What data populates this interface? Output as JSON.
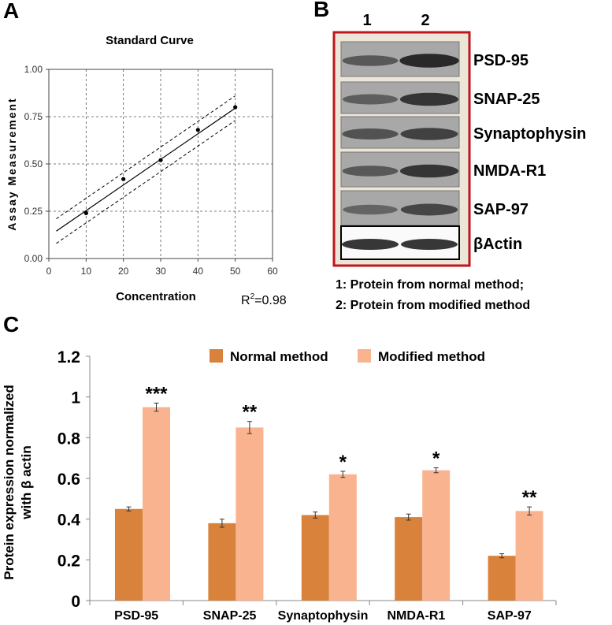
{
  "panels": {
    "a": "A",
    "b": "B",
    "c": "C"
  },
  "chart_data": [
    {
      "panel": "A",
      "type": "scatter",
      "title": "Standard Curve",
      "xlabel": "Concentration",
      "ylabel": "Assay Measurement",
      "xlim": [
        0,
        60
      ],
      "ylim": [
        0,
        1.0
      ],
      "x_ticks": [
        "0",
        "10",
        "20",
        "30",
        "40",
        "50",
        "60"
      ],
      "y_ticks": [
        "0.00",
        "0.25",
        "0.50",
        "0.75",
        "1.00"
      ],
      "grid": true,
      "points": [
        {
          "x": 10,
          "y": 0.24
        },
        {
          "x": 20,
          "y": 0.42
        },
        {
          "x": 30,
          "y": 0.52
        },
        {
          "x": 40,
          "y": 0.68
        },
        {
          "x": 50,
          "y": 0.8
        }
      ],
      "fit_line": {
        "x": [
          2,
          50
        ],
        "y": [
          0.145,
          0.795
        ]
      },
      "confidence_band": {
        "upper": {
          "x": [
            2,
            50
          ],
          "y": [
            0.21,
            0.86
          ]
        },
        "lower": {
          "x": [
            2,
            50
          ],
          "y": [
            0.08,
            0.73
          ]
        }
      },
      "r2_label": "R",
      "r2_sup": "2",
      "r2_value": "=0.98"
    },
    {
      "panel": "B",
      "type": "blot",
      "lanes": [
        "1",
        "2"
      ],
      "rows": [
        {
          "label": "PSD-95",
          "lane_intensity": [
            0.55,
            0.95
          ]
        },
        {
          "label": "SNAP-25",
          "lane_intensity": [
            0.5,
            0.85
          ]
        },
        {
          "label": "Synaptophysin",
          "lane_intensity": [
            0.6,
            0.75
          ]
        },
        {
          "label": "NMDA-R1",
          "lane_intensity": [
            0.55,
            0.85
          ]
        },
        {
          "label": "SAP-97",
          "lane_intensity": [
            0.45,
            0.7
          ]
        },
        {
          "label": "βActin",
          "lane_intensity": [
            0.9,
            0.9
          ]
        }
      ],
      "notes": [
        "1: Protein from normal method;",
        "2: Protein from modified method"
      ]
    },
    {
      "panel": "C",
      "type": "bar",
      "categories": [
        "PSD-95",
        "SNAP-25",
        "Synaptophysin",
        "NMDA-R1",
        "SAP-97"
      ],
      "series": [
        {
          "name": "Normal method",
          "color": "#D9823B",
          "values": [
            0.45,
            0.38,
            0.42,
            0.41,
            0.22
          ],
          "errors": [
            0.01,
            0.02,
            0.015,
            0.015,
            0.01
          ]
        },
        {
          "name": "Modified method",
          "color": "#F9B48F",
          "values": [
            0.95,
            0.85,
            0.62,
            0.64,
            0.44
          ],
          "errors": [
            0.02,
            0.03,
            0.015,
            0.012,
            0.02
          ]
        }
      ],
      "significance": [
        "***",
        "**",
        "*",
        "*",
        "**"
      ],
      "ylabel_lines": [
        "Protein expression normalized",
        "with β actin"
      ],
      "ylim": [
        0,
        1.2
      ],
      "y_ticks": [
        "0",
        "0.2",
        "0.4",
        "0.6",
        "0.8",
        "1",
        "1.2"
      ],
      "legend_position": "top",
      "grid": false
    }
  ]
}
